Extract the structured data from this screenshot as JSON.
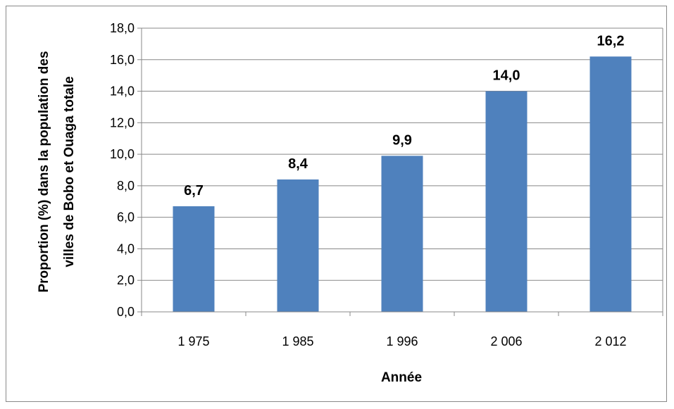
{
  "chart_data": {
    "type": "bar",
    "categories": [
      "1 975",
      "1 985",
      "1 996",
      "2 006",
      "2 012"
    ],
    "values": [
      6.7,
      8.4,
      9.9,
      14.0,
      16.2
    ],
    "data_labels": [
      "6,7",
      "8,4",
      "9,9",
      "14,0",
      "16,2"
    ],
    "title": "",
    "xlabel": "Année",
    "ylabel_lines": [
      "Proportion (%)  dans la population des",
      "villes de Bobo et Ouaga  totale"
    ],
    "ylim": [
      0,
      18
    ],
    "yticks": [
      0,
      2,
      4,
      6,
      8,
      10,
      12,
      14,
      16,
      18
    ],
    "ytick_labels": [
      "0,0",
      "2,0",
      "4,0",
      "6,0",
      "8,0",
      "10,0",
      "12,0",
      "14,0",
      "16,0",
      "18,0"
    ],
    "grid": true,
    "legend": "none",
    "colors": {
      "bar": "#4f81bd",
      "grid": "#888888",
      "frame": "#898989"
    }
  }
}
